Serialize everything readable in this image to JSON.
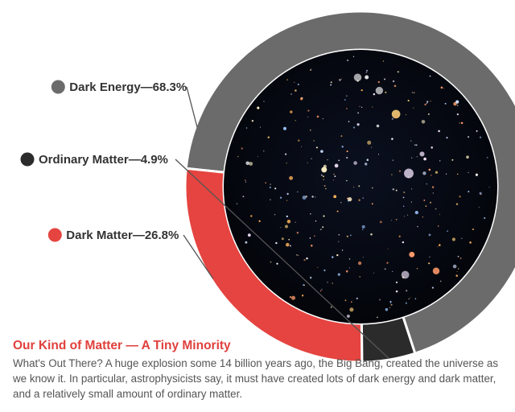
{
  "chart_data": {
    "type": "pie",
    "categories": [
      "Dark Energy",
      "Ordinary Matter",
      "Dark Matter"
    ],
    "values": [
      68.3,
      4.9,
      26.8
    ],
    "unit": "%",
    "legend_labels": [
      "Dark Energy—68.3%",
      "Ordinary Matter—4.9%",
      "Dark Matter—26.8%"
    ],
    "colors": [
      "#6b6b6b",
      "#2b2b2b",
      "#e54440"
    ],
    "legend": "left"
  },
  "caption": {
    "title": "Our Kind of Matter — A Tiny Minority",
    "body": "What's Out There? A huge explosion some 14 billion years ago, the Big Bang, created the universe as we know it. In particular, astrophysicists say, it must have created lots of dark energy and dark matter, and a relatively small amount of ordinary matter."
  },
  "colors": {
    "title": "#e0403c",
    "body_text": "#555555",
    "space": "#05070d"
  }
}
